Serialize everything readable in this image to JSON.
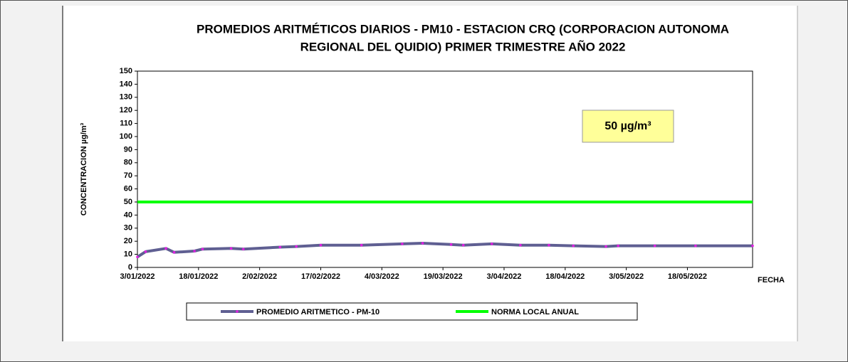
{
  "chart_data": {
    "type": "line",
    "title": [
      "PROMEDIOS ARITMÉTICOS DIARIOS - PM10 -  ESTACION CRQ (CORPORACION AUTONOMA",
      "REGIONAL DEL QUIDIO) PRIMER TRIMESTRE AÑO 2022"
    ],
    "y_label": "CONCENTRACION µg/m³",
    "x_label": "FECHA",
    "annotation": "50 µg/m³",
    "xlim": [
      "2022-01-03",
      "2022-06-03"
    ],
    "xticks": [
      {
        "value": "2022-01-03",
        "label": "3/01/2022"
      },
      {
        "value": "2022-01-18",
        "label": "18/01/2022"
      },
      {
        "value": "2022-02-02",
        "label": "2/02/2022"
      },
      {
        "value": "2022-02-17",
        "label": "17/02/2022"
      },
      {
        "value": "2022-03-04",
        "label": "4/03/2022"
      },
      {
        "value": "2022-03-19",
        "label": "19/03/2022"
      },
      {
        "value": "2022-04-03",
        "label": "3/04/2022"
      },
      {
        "value": "2022-04-18",
        "label": "18/04/2022"
      },
      {
        "value": "2022-05-03",
        "label": "3/05/2022"
      },
      {
        "value": "2022-05-18",
        "label": "18/05/2022"
      }
    ],
    "ylim": [
      0,
      150
    ],
    "yticks": [
      0,
      10,
      20,
      30,
      40,
      50,
      60,
      70,
      80,
      90,
      100,
      110,
      120,
      130,
      140,
      150
    ],
    "series": [
      {
        "name": "PROMEDIO ARITMETICO - PM-10",
        "color": "#5f5f92",
        "marker_color": "#e020e0",
        "x": [
          "2022-01-03",
          "2022-01-05",
          "2022-01-10",
          "2022-01-12",
          "2022-01-17",
          "2022-01-19",
          "2022-01-26",
          "2022-01-29",
          "2022-02-07",
          "2022-02-11",
          "2022-02-17",
          "2022-02-27",
          "2022-03-09",
          "2022-03-14",
          "2022-03-21",
          "2022-03-24",
          "2022-03-31",
          "2022-04-07",
          "2022-04-14",
          "2022-04-20",
          "2022-04-28",
          "2022-05-01",
          "2022-05-10",
          "2022-05-20",
          "2022-06-03"
        ],
        "values": [
          8,
          12,
          14.5,
          11.5,
          12.5,
          14,
          14.5,
          14,
          15.5,
          16,
          17,
          17,
          18,
          18.5,
          17.5,
          17,
          18,
          17,
          17,
          16.5,
          16,
          16.5,
          16.5,
          16.5,
          16.5
        ]
      },
      {
        "name": "NORMA LOCAL ANUAL",
        "color": "#00ff00",
        "x": [
          "2022-01-03",
          "2022-06-03"
        ],
        "values": [
          50,
          50
        ]
      }
    ]
  }
}
